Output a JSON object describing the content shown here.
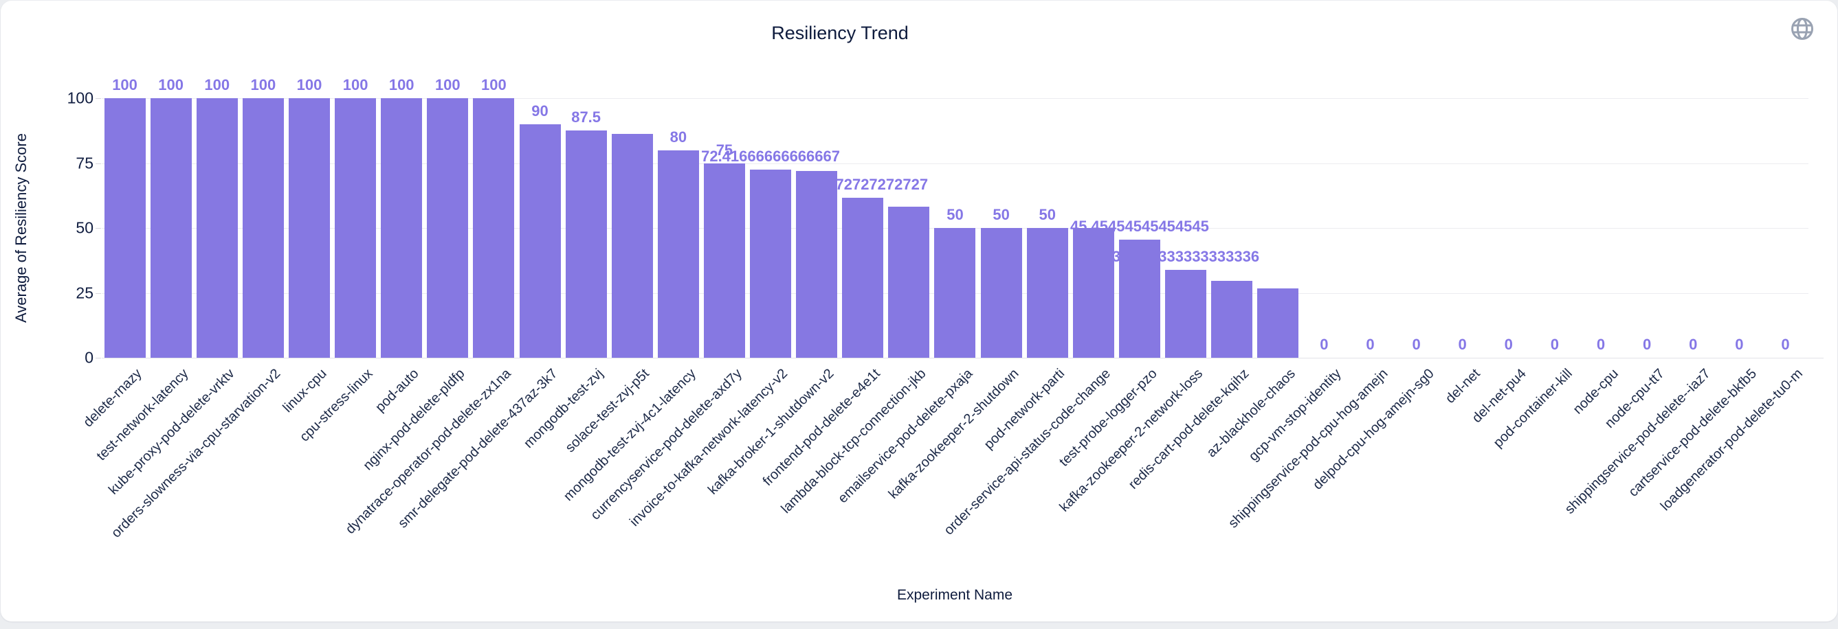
{
  "page": {
    "background_color": "#eceef1",
    "card_background": "#ffffff"
  },
  "header": {
    "title": "Resiliency Trend",
    "globe_icon_color": "#99a2b2"
  },
  "chart_data": {
    "type": "bar",
    "title": "Resiliency Trend",
    "xlabel": "Experiment Name",
    "ylabel": "Average of Resiliency Score",
    "ylim": [
      0,
      100
    ],
    "yticks": [
      0,
      25,
      50,
      75,
      100
    ],
    "grid": true,
    "legend": "none",
    "bar_color": "#8678e2",
    "value_label_color": "#8577e6",
    "axis_text_color": "#1c2947",
    "categories": [
      "delete-rnazy",
      "test-network-latency",
      "kube-proxy-pod-delete-vrktv",
      "orders-slowness-via-cpu-starvation-v2",
      "linux-cpu",
      "cpu-stress-linux",
      "pod-auto",
      "nginx-pod-delete-pldfp",
      "dynatrace-operator-pod-delete-zx1na",
      "smr-delegate-pod-delete-437az-3k7",
      "mongodb-test-zvj",
      "solace-test-zvj-p5t",
      "mongodb-test-zvj-4c1-latency",
      "currencyservice-pod-delete-axd7y",
      "invoice-to-kafka-network-latency-v2",
      "kafka-broker-1-shutdown-v2",
      "frontend-pod-delete-e4e1t",
      "lambda-block-tcp-connection-jkb",
      "emailservice-pod-delete-pxaja",
      "kafka-zookeeper-2-shutdown",
      "pod-network-parti",
      "order-service-api-status-code-change",
      "test-probe-logger-pzo",
      "kafka-zookeeper-2-network-loss",
      "redis-cart-pod-delete-kqihz",
      "az-blackhole-chaos",
      "gcp-vm-stop-identity",
      "shippingservice-pod-cpu-hog-amejn",
      "delpod-cpu-hog-amejn-sg0",
      "del-net",
      "del-net-pu4",
      "pod-container-kill",
      "node-cpu",
      "node-cpu-tt7",
      "shippingservice-pod-delete--iaz7",
      "cartservice-pod-delete-bkfb5",
      "loadgenerator-pod-delete-tu0-m"
    ],
    "values": [
      100,
      100,
      100,
      100,
      100,
      100,
      100,
      100,
      100,
      90,
      87.5,
      86.3,
      80,
      75,
      72.41666666666667,
      72,
      61.7272727272727,
      58.3,
      50,
      50,
      50,
      50,
      45.45454545454545,
      33.833333333333336,
      29.6,
      26.7,
      0,
      0,
      0,
      0,
      0,
      0,
      0,
      0,
      0,
      0,
      0
    ],
    "value_labels": [
      "100",
      "100",
      "100",
      "100",
      "100",
      "100",
      "100",
      "100",
      "100",
      "90",
      "87.5",
      null,
      "80",
      "75",
      "72.41666666666667",
      null,
      "61.7272727272727",
      null,
      "50",
      "50",
      "50",
      null,
      "45.45454545454545",
      "33.833333333333336",
      null,
      null,
      "0",
      "0",
      "0",
      "0",
      "0",
      "0",
      "0",
      "0",
      "0",
      "0",
      "0"
    ]
  }
}
